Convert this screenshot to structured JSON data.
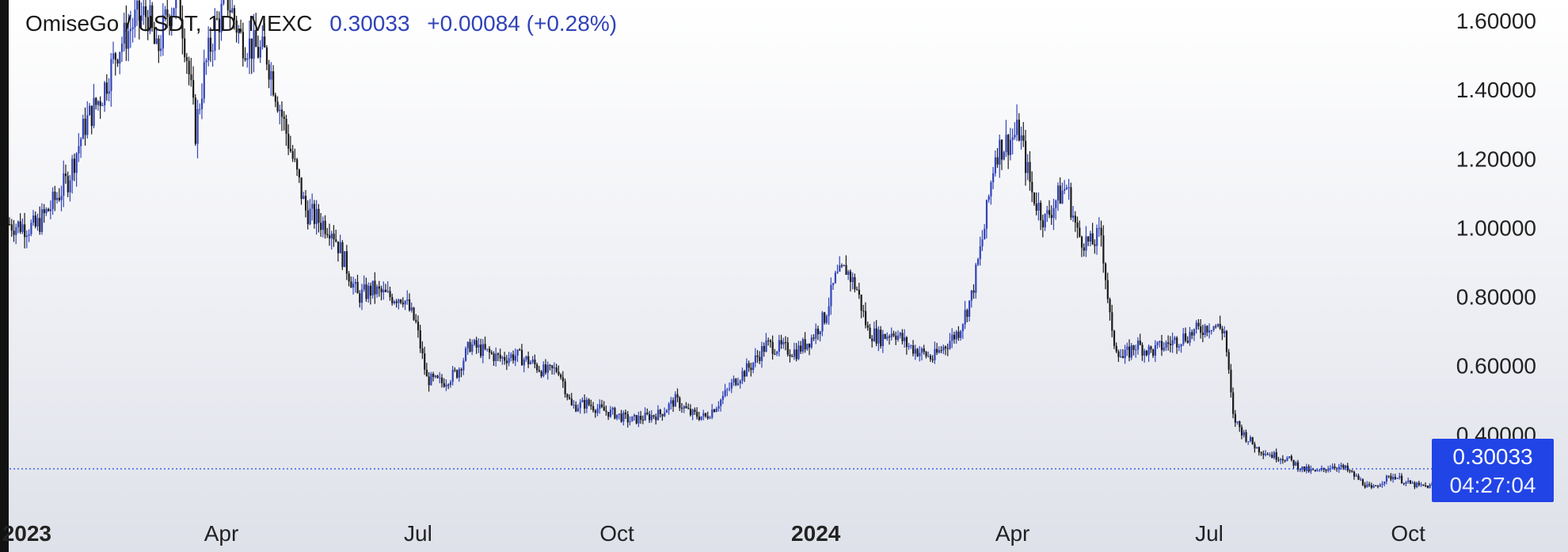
{
  "legend": {
    "symbol": "OmiseGo / USDT, 1D, MEXC",
    "last": "0.30033",
    "change": "+0.00084 (+0.28%)"
  },
  "badge": {
    "price": "0.30033",
    "countdown": "04:27:04"
  },
  "colors": {
    "up": "#3143b8",
    "down": "#1a1a1a",
    "badge": "#2144e6",
    "price_line": "#2144e6"
  },
  "chart_data": {
    "type": "candlestick",
    "symbol": "OMG/USDT",
    "interval": "1D",
    "exchange": "MEXC",
    "ylim": [
      0.19,
      1.66
    ],
    "y_ticks": [
      1.6,
      1.4,
      1.2,
      1.0,
      0.8,
      0.6,
      0.4
    ],
    "y_tick_labels": [
      "1.60000",
      "1.40000",
      "1.20000",
      "1.00000",
      "0.80000",
      "0.60000",
      "0.40000"
    ],
    "x_range": [
      "2022-12-24",
      "2024-10-09"
    ],
    "x_ticks": [
      {
        "date": "2023-01-01",
        "label": "2023",
        "bold": true
      },
      {
        "date": "2023-04-01",
        "label": "Apr",
        "bold": false
      },
      {
        "date": "2023-07-01",
        "label": "Jul",
        "bold": false
      },
      {
        "date": "2023-10-01",
        "label": "Oct",
        "bold": false
      },
      {
        "date": "2024-01-01",
        "label": "2024",
        "bold": true
      },
      {
        "date": "2024-04-01",
        "label": "Apr",
        "bold": false
      },
      {
        "date": "2024-07-01",
        "label": "Jul",
        "bold": false
      },
      {
        "date": "2024-10-01",
        "label": "Oct",
        "bold": false
      }
    ],
    "last_price": 0.30033,
    "close_path": [
      [
        "2022-12-24",
        1.01
      ],
      [
        "2023-01-05",
        1.0
      ],
      [
        "2023-01-12",
        1.06
      ],
      [
        "2023-01-20",
        1.14
      ],
      [
        "2023-01-28",
        1.3
      ],
      [
        "2023-02-05",
        1.39
      ],
      [
        "2023-02-12",
        1.52
      ],
      [
        "2023-02-20",
        1.6
      ],
      [
        "2023-02-26",
        1.62
      ],
      [
        "2023-03-02",
        1.5
      ],
      [
        "2023-03-07",
        1.62
      ],
      [
        "2023-03-12",
        1.68
      ],
      [
        "2023-03-16",
        1.5
      ],
      [
        "2023-03-20",
        1.28
      ],
      [
        "2023-03-24",
        1.45
      ],
      [
        "2023-03-29",
        1.58
      ],
      [
        "2023-04-04",
        1.66
      ],
      [
        "2023-04-10",
        1.55
      ],
      [
        "2023-04-16",
        1.52
      ],
      [
        "2023-04-22",
        1.5
      ],
      [
        "2023-04-28",
        1.35
      ],
      [
        "2023-05-04",
        1.2
      ],
      [
        "2023-05-10",
        1.05
      ],
      [
        "2023-05-16",
        1.02
      ],
      [
        "2023-05-22",
        1.0
      ],
      [
        "2023-05-28",
        0.9
      ],
      [
        "2023-06-03",
        0.8
      ],
      [
        "2023-06-10",
        0.82
      ],
      [
        "2023-06-17",
        0.8
      ],
      [
        "2023-06-24",
        0.8
      ],
      [
        "2023-06-30",
        0.72
      ],
      [
        "2023-07-05",
        0.56
      ],
      [
        "2023-07-12",
        0.55
      ],
      [
        "2023-07-19",
        0.58
      ],
      [
        "2023-07-25",
        0.66
      ],
      [
        "2023-08-01",
        0.64
      ],
      [
        "2023-08-08",
        0.62
      ],
      [
        "2023-08-15",
        0.63
      ],
      [
        "2023-08-22",
        0.61
      ],
      [
        "2023-08-29",
        0.58
      ],
      [
        "2023-09-04",
        0.59
      ],
      [
        "2023-09-10",
        0.48
      ],
      [
        "2023-09-17",
        0.49
      ],
      [
        "2023-09-24",
        0.47
      ],
      [
        "2023-09-30",
        0.46
      ],
      [
        "2023-10-07",
        0.44
      ],
      [
        "2023-10-14",
        0.45
      ],
      [
        "2023-10-21",
        0.46
      ],
      [
        "2023-10-28",
        0.5
      ],
      [
        "2023-11-04",
        0.46
      ],
      [
        "2023-11-11",
        0.45
      ],
      [
        "2023-11-18",
        0.5
      ],
      [
        "2023-11-25",
        0.56
      ],
      [
        "2023-12-02",
        0.6
      ],
      [
        "2023-12-09",
        0.66
      ],
      [
        "2023-12-16",
        0.65
      ],
      [
        "2023-12-23",
        0.64
      ],
      [
        "2023-12-30",
        0.68
      ],
      [
        "2024-01-05",
        0.74
      ],
      [
        "2024-01-10",
        0.85
      ],
      [
        "2024-01-15",
        0.88
      ],
      [
        "2024-01-20",
        0.82
      ],
      [
        "2024-01-25",
        0.7
      ],
      [
        "2024-01-31",
        0.68
      ],
      [
        "2024-02-06",
        0.7
      ],
      [
        "2024-02-12",
        0.66
      ],
      [
        "2024-02-18",
        0.64
      ],
      [
        "2024-02-24",
        0.62
      ],
      [
        "2024-03-01",
        0.66
      ],
      [
        "2024-03-07",
        0.7
      ],
      [
        "2024-03-13",
        0.8
      ],
      [
        "2024-03-19",
        1.0
      ],
      [
        "2024-03-24",
        1.22
      ],
      [
        "2024-03-30",
        1.25
      ],
      [
        "2024-04-04",
        1.28
      ],
      [
        "2024-04-10",
        1.1
      ],
      [
        "2024-04-16",
        1.02
      ],
      [
        "2024-04-21",
        1.08
      ],
      [
        "2024-04-26",
        1.12
      ],
      [
        "2024-05-01",
        0.98
      ],
      [
        "2024-05-07",
        0.95
      ],
      [
        "2024-05-12",
        0.98
      ],
      [
        "2024-05-17",
        0.68
      ],
      [
        "2024-05-22",
        0.62
      ],
      [
        "2024-05-28",
        0.66
      ],
      [
        "2024-06-04",
        0.64
      ],
      [
        "2024-06-11",
        0.66
      ],
      [
        "2024-06-18",
        0.68
      ],
      [
        "2024-06-25",
        0.7
      ],
      [
        "2024-07-02",
        0.72
      ],
      [
        "2024-07-08",
        0.7
      ],
      [
        "2024-07-12",
        0.45
      ],
      [
        "2024-07-17",
        0.4
      ],
      [
        "2024-07-23",
        0.36
      ],
      [
        "2024-07-30",
        0.34
      ],
      [
        "2024-08-06",
        0.33
      ],
      [
        "2024-08-13",
        0.3
      ],
      [
        "2024-08-20",
        0.29
      ],
      [
        "2024-08-27",
        0.31
      ],
      [
        "2024-09-02",
        0.3
      ],
      [
        "2024-09-08",
        0.27
      ],
      [
        "2024-09-14",
        0.24
      ],
      [
        "2024-09-20",
        0.27
      ],
      [
        "2024-09-25",
        0.28
      ],
      [
        "2024-09-30",
        0.26
      ],
      [
        "2024-10-06",
        0.25
      ],
      [
        "2024-10-11",
        0.25
      ],
      [
        "2024-10-14",
        0.25
      ],
      [
        "2024-10-17",
        0.32
      ],
      [
        "2024-10-20",
        0.31
      ],
      [
        "2024-10-23",
        0.3
      ]
    ]
  }
}
